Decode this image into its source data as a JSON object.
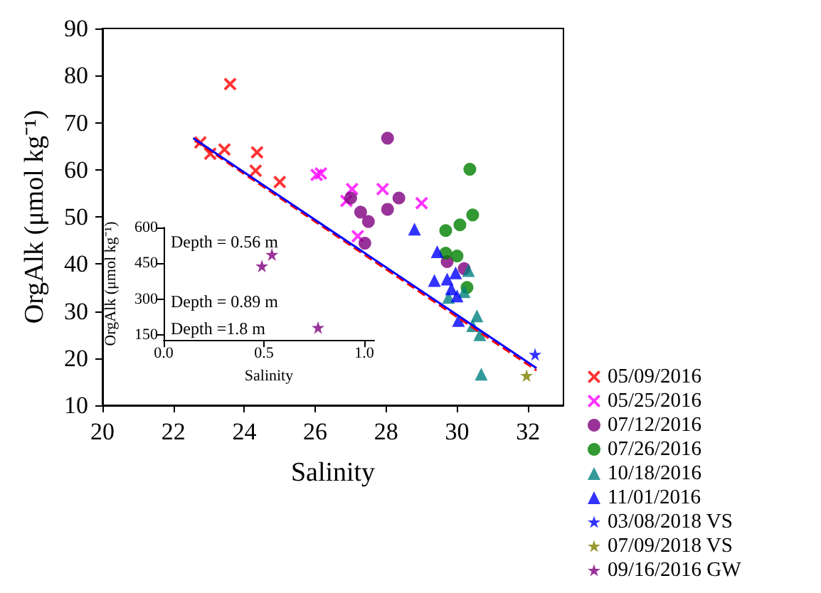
{
  "chart_data": [
    {
      "type": "scatter",
      "xlabel": "Salinity",
      "ylabel": "OrgAlk (μmol kg⁻¹)",
      "xlim": [
        20,
        33
      ],
      "xticks": [
        20,
        22,
        24,
        26,
        28,
        30,
        32
      ],
      "ylim": [
        10,
        90
      ],
      "yticks": [
        10,
        20,
        30,
        40,
        50,
        60,
        70,
        80,
        90
      ],
      "legend": "right",
      "grid": false,
      "series": [
        {
          "name": "05/09/2016",
          "color": "#ff0000",
          "marker": "cross",
          "x": [
            23.6,
            22.76,
            23.04,
            23.44,
            24.36,
            24.32,
            25.0
          ],
          "values": [
            78.2,
            65.8,
            63.4,
            64.3,
            63.7,
            59.8,
            57.4
          ]
        },
        {
          "name": "05/25/2016",
          "color": "#ff00ff",
          "marker": "cross",
          "x": [
            26.04,
            26.16,
            27.04,
            26.88,
            27.2,
            27.9,
            29.0
          ],
          "values": [
            58.9,
            59.2,
            55.9,
            53.4,
            45.9,
            55.9,
            52.9
          ]
        },
        {
          "name": "07/12/2016",
          "color": "#800080",
          "marker": "circle",
          "x": [
            27.0,
            27.28,
            27.5,
            28.04,
            28.36,
            28.04,
            27.4,
            29.72,
            30.2
          ],
          "values": [
            54.0,
            51.0,
            49.0,
            66.7,
            54.0,
            51.6,
            44.4,
            40.5,
            39.0
          ]
        },
        {
          "name": "07/26/2016",
          "color": "#008000",
          "marker": "circle",
          "x": [
            30.36,
            30.44,
            30.08,
            29.68,
            29.68,
            30.0,
            30.28
          ],
          "values": [
            60.1,
            50.4,
            48.3,
            47.1,
            42.3,
            41.7,
            35.0
          ]
        },
        {
          "name": "10/18/2016",
          "color": "#008080",
          "marker": "triangle",
          "x": [
            30.32,
            29.76,
            30.2,
            30.56,
            30.44,
            30.64,
            30.68
          ],
          "values": [
            38.6,
            32.9,
            34.1,
            29.0,
            26.9,
            25.0,
            16.6
          ]
        },
        {
          "name": "11/01/2016",
          "color": "#0000ff",
          "marker": "triangle",
          "x": [
            28.8,
            29.44,
            29.36,
            29.72,
            29.96,
            29.84,
            30.0,
            30.04
          ],
          "values": [
            47.4,
            42.6,
            36.5,
            36.8,
            38.1,
            34.7,
            33.2,
            28.0
          ]
        },
        {
          "name": "03/08/2018 VS",
          "color": "#0000ff",
          "marker": "star",
          "x": [
            32.2
          ],
          "values": [
            20.8
          ]
        },
        {
          "name": "07/09/2018 VS",
          "color": "#808000",
          "marker": "star",
          "x": [
            31.96
          ],
          "values": [
            16.3
          ]
        },
        {
          "type": "line",
          "color": "#ff0000",
          "line_style": "dashed",
          "marker": "none",
          "x": [
            22.6,
            32.24
          ],
          "values": [
            66.2,
            17.4
          ]
        },
        {
          "type": "line",
          "color": "#0000ff",
          "line_style": "solid",
          "marker": "none",
          "x": [
            22.56,
            32.24
          ],
          "values": [
            66.7,
            17.9
          ]
        }
      ]
    },
    {
      "type": "scatter",
      "xlabel": "Salinity",
      "ylabel": "OrgAlk (μmol kg⁻¹)",
      "xlim": [
        0,
        1.05
      ],
      "xticks": [
        {
          "value": 0,
          "label": "0.0"
        },
        {
          "value": 0.5,
          "label": "0.5"
        },
        {
          "value": 1,
          "label": "1.0"
        }
      ],
      "ylim": [
        130,
        600
      ],
      "yticks": [
        150,
        300,
        450,
        600
      ],
      "grid": false,
      "annotations": [
        "Depth = 0.56 m",
        "Depth = 0.89 m",
        "Depth =1.8 m"
      ],
      "series": [
        {
          "name": "09/16/2016 GW",
          "color": "#800080",
          "marker": "star",
          "x": [
            0.54,
            0.49,
            0.77
          ],
          "values": [
            487,
            439,
            182
          ]
        }
      ]
    }
  ]
}
